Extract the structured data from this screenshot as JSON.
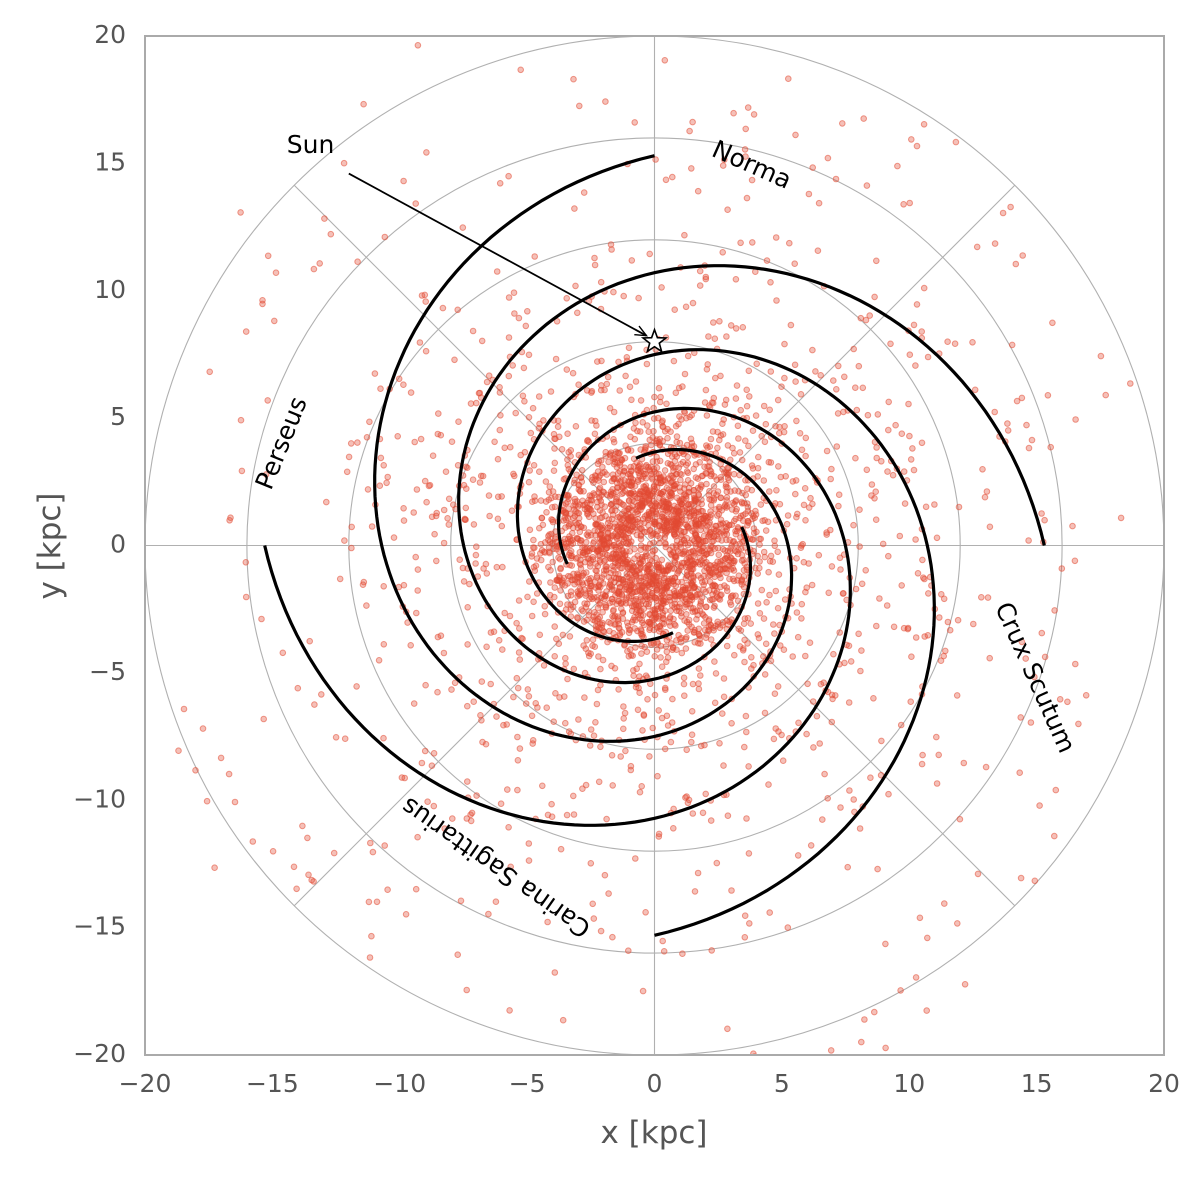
{
  "chart_data": {
    "type": "scatter",
    "title": "",
    "xlabel": "x [kpc]",
    "ylabel": "y [kpc]",
    "xlim": [
      -20,
      20
    ],
    "ylim": [
      -20,
      20
    ],
    "xticks": [
      -20,
      -15,
      -10,
      -5,
      0,
      5,
      10,
      15,
      20
    ],
    "yticks": [
      -20,
      -15,
      -10,
      -5,
      0,
      5,
      10,
      15,
      20
    ],
    "tick_labels": [
      "−20",
      "−15",
      "−10",
      "−5",
      "0",
      "5",
      "10",
      "15",
      "20"
    ],
    "polar_grid": {
      "radii_kpc": [
        4,
        8,
        12,
        16,
        20
      ],
      "spoke_angles_deg": [
        0,
        45,
        90,
        135,
        180,
        225,
        270,
        315
      ]
    },
    "spiral_model": {
      "arms": 4,
      "pitch_angle_deg": 12.8,
      "reference_radius_kpc": 15.3,
      "reference_angles_deg": [
        90,
        0,
        270,
        180
      ],
      "theta_span_deg": [
        0,
        600
      ],
      "r_min_kpc": 3.5
    },
    "arm_labels": [
      {
        "text": "Norma",
        "x": 3.8,
        "y": 14.9,
        "rotation_deg": 24
      },
      {
        "text": "Crux Scutum",
        "x": 14.9,
        "y": -5.2,
        "rotation_deg": 66
      },
      {
        "text": "Carina Sagittarius",
        "x": -6.2,
        "y": -12.6,
        "rotation_deg": 215
      },
      {
        "text": "Perseus",
        "x": -14.6,
        "y": 4.0,
        "rotation_deg": -68
      }
    ],
    "sun": {
      "label": "Sun",
      "x": 0.0,
      "y": 8.0,
      "label_x": -13.5,
      "label_y": 15.4,
      "arrow_start_x": -12.0,
      "arrow_start_y": 14.6
    },
    "stars_sample": {
      "count_drawn": 3400,
      "scatter_kpc": 0.85,
      "core_radius_kpc": 4.2
    }
  },
  "colors": {
    "points": "#e24a33",
    "arms": "#000000",
    "grid": "#b0b0b0",
    "frame": "#aaaaaa",
    "text": "#555555"
  }
}
